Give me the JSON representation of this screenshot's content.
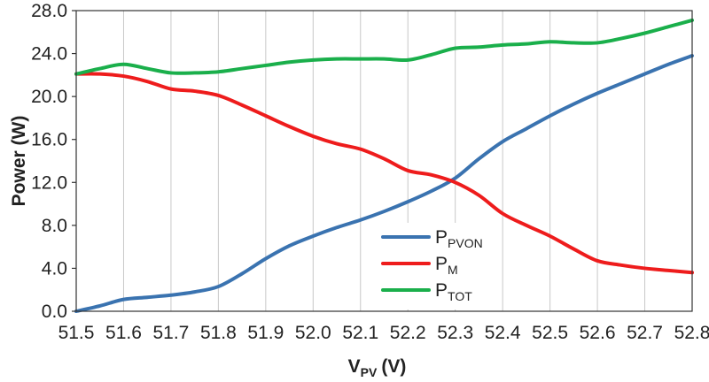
{
  "chart_data": {
    "type": "line",
    "xlabel": {
      "main": "V",
      "sub": "PV",
      "unit": "(V)"
    },
    "ylabel": "Power (W)",
    "xlim": [
      51.5,
      52.8
    ],
    "ylim": [
      0,
      28
    ],
    "xticks": [
      "51.5",
      "51.6",
      "51.7",
      "51.8",
      "51.9",
      "52.0",
      "52.1",
      "52.2",
      "52.3",
      "52.4",
      "52.5",
      "52.6",
      "52.7",
      "52.8"
    ],
    "yticks": [
      "0.0",
      "4.0",
      "8.0",
      "12.0",
      "16.0",
      "20.0",
      "24.0",
      "28.0"
    ],
    "grid": "vertical",
    "legend_position": "bottom-center",
    "series": [
      {
        "key": "pvon",
        "name": {
          "main": "P",
          "sub": "PVON"
        },
        "color": "#3a73b0",
        "x": [
          51.5,
          51.55,
          51.6,
          51.65,
          51.7,
          51.75,
          51.8,
          51.85,
          51.9,
          51.95,
          52.0,
          52.05,
          52.1,
          52.15,
          52.2,
          52.25,
          52.3,
          52.35,
          52.4,
          52.45,
          52.5,
          52.55,
          52.6,
          52.65,
          52.7,
          52.75,
          52.8
        ],
        "y": [
          0.0,
          0.5,
          1.1,
          1.3,
          1.5,
          1.8,
          2.3,
          3.5,
          4.9,
          6.1,
          7.0,
          7.8,
          8.5,
          9.3,
          10.2,
          11.2,
          12.4,
          14.2,
          15.8,
          17.0,
          18.2,
          19.3,
          20.3,
          21.2,
          22.1,
          23.0,
          23.8
        ]
      },
      {
        "key": "m",
        "name": {
          "main": "P",
          "sub": "M"
        },
        "color": "#ee1c1c",
        "x": [
          51.5,
          51.55,
          51.6,
          51.65,
          51.7,
          51.75,
          51.8,
          51.85,
          51.9,
          51.95,
          52.0,
          52.05,
          52.1,
          52.15,
          52.2,
          52.25,
          52.3,
          52.35,
          52.4,
          52.45,
          52.5,
          52.55,
          52.6,
          52.65,
          52.7,
          52.75,
          52.8
        ],
        "y": [
          22.1,
          22.1,
          21.9,
          21.4,
          20.7,
          20.5,
          20.1,
          19.2,
          18.2,
          17.2,
          16.3,
          15.6,
          15.1,
          14.2,
          13.1,
          12.7,
          12.0,
          10.8,
          9.1,
          8.0,
          7.0,
          5.8,
          4.7,
          4.3,
          4.0,
          3.8,
          3.6
        ]
      },
      {
        "key": "tot",
        "name": {
          "main": "P",
          "sub": "TOT"
        },
        "color": "#1aaf4b",
        "x": [
          51.5,
          51.55,
          51.6,
          51.65,
          51.7,
          51.75,
          51.8,
          51.85,
          51.9,
          51.95,
          52.0,
          52.05,
          52.1,
          52.15,
          52.2,
          52.25,
          52.3,
          52.35,
          52.4,
          52.45,
          52.5,
          52.55,
          52.6,
          52.65,
          52.7,
          52.75,
          52.8
        ],
        "y": [
          22.1,
          22.6,
          23.0,
          22.6,
          22.2,
          22.2,
          22.3,
          22.6,
          22.9,
          23.2,
          23.4,
          23.5,
          23.5,
          23.5,
          23.4,
          23.9,
          24.5,
          24.6,
          24.8,
          24.9,
          25.1,
          25.0,
          25.0,
          25.4,
          25.9,
          26.5,
          27.1
        ]
      }
    ]
  }
}
